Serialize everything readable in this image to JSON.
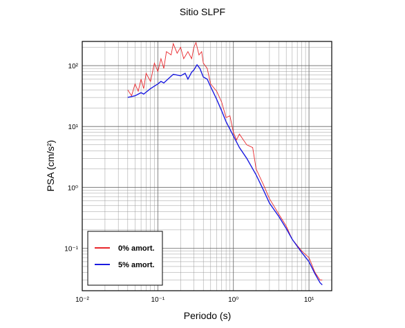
{
  "chart_data": {
    "type": "line",
    "title": "Sitio SLPF",
    "x_label": "Periodo (s)",
    "y_label": "PSA (cm/s²)",
    "log_x": true,
    "log_y": true,
    "grid": true,
    "legend_position": "lower left",
    "xlim": [
      0.01,
      20
    ],
    "ylim": [
      0.02,
      250
    ],
    "xticks": [
      {
        "value": 0.01,
        "label": "10⁻²"
      },
      {
        "value": 0.1,
        "label": "10⁻¹"
      },
      {
        "value": 1,
        "label": "10⁰"
      },
      {
        "value": 10,
        "label": "10¹"
      }
    ],
    "yticks": [
      {
        "value": 0.1,
        "label": "10⁻¹"
      },
      {
        "value": 1,
        "label": "10⁰"
      },
      {
        "value": 10,
        "label": "10¹"
      },
      {
        "value": 100,
        "label": "10²"
      }
    ],
    "series": [
      {
        "name": "0% amort.",
        "color": "#e8262b",
        "x": [
          0.04,
          0.045,
          0.05,
          0.055,
          0.06,
          0.065,
          0.07,
          0.08,
          0.09,
          0.1,
          0.11,
          0.12,
          0.13,
          0.15,
          0.16,
          0.18,
          0.2,
          0.22,
          0.25,
          0.28,
          0.3,
          0.32,
          0.35,
          0.38,
          0.4,
          0.45,
          0.5,
          0.6,
          0.7,
          0.8,
          0.9,
          1.0,
          1.1,
          1.2,
          1.5,
          1.8,
          2,
          2.5,
          3,
          4,
          5,
          6,
          8,
          10,
          12,
          14,
          15
        ],
        "values": [
          40,
          32,
          50,
          38,
          60,
          42,
          75,
          55,
          110,
          80,
          130,
          90,
          170,
          150,
          230,
          160,
          200,
          130,
          170,
          130,
          200,
          240,
          150,
          170,
          110,
          90,
          50,
          38,
          25,
          14,
          15,
          8,
          6,
          7.5,
          5,
          4.5,
          2,
          1.1,
          0.65,
          0.36,
          0.23,
          0.14,
          0.09,
          0.07,
          0.04,
          0.03,
          0.03
        ]
      },
      {
        "name": "5% amort.",
        "color": "#1a1ae0",
        "x": [
          0.04,
          0.05,
          0.06,
          0.065,
          0.08,
          0.1,
          0.11,
          0.12,
          0.14,
          0.16,
          0.18,
          0.2,
          0.23,
          0.25,
          0.28,
          0.3,
          0.33,
          0.36,
          0.4,
          0.45,
          0.5,
          0.6,
          0.7,
          0.8,
          1.0,
          1.2,
          1.5,
          2,
          2.5,
          3,
          4,
          5,
          6,
          8,
          10,
          12,
          14,
          15
        ],
        "values": [
          30,
          32,
          36,
          34,
          42,
          50,
          55,
          52,
          62,
          72,
          70,
          68,
          75,
          60,
          78,
          85,
          103,
          90,
          65,
          60,
          45,
          28,
          18,
          12,
          7,
          4.5,
          3,
          1.6,
          0.9,
          0.55,
          0.33,
          0.21,
          0.14,
          0.085,
          0.06,
          0.038,
          0.027,
          0.025
        ]
      }
    ]
  }
}
